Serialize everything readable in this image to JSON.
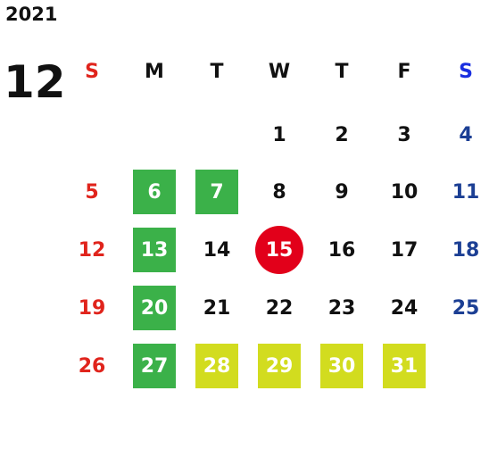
{
  "year": "2021",
  "month": "12",
  "weekdays": [
    "S",
    "M",
    "T",
    "W",
    "T",
    "F",
    "S"
  ],
  "weeks": [
    [
      null,
      null,
      null,
      "1",
      "2",
      "3",
      "4"
    ],
    [
      "5",
      "6",
      "7",
      "8",
      "9",
      "10",
      "11"
    ],
    [
      "12",
      "13",
      "14",
      "15",
      "16",
      "17",
      "18"
    ],
    [
      "19",
      "20",
      "21",
      "22",
      "23",
      "24",
      "25"
    ],
    [
      "26",
      "27",
      "28",
      "29",
      "30",
      "31",
      null
    ]
  ]
}
